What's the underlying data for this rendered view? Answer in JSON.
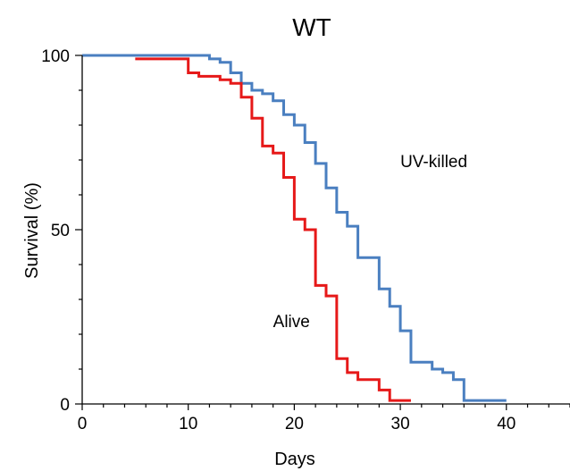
{
  "chart_data": {
    "type": "line",
    "title": "WT",
    "xlabel": "Days",
    "ylabel": "Survival (%)",
    "xlim": [
      0,
      46
    ],
    "ylim": [
      0,
      100
    ],
    "x_ticks": [
      0,
      10,
      20,
      30,
      40
    ],
    "y_ticks": [
      0,
      50,
      100
    ],
    "x_tick_labels": [
      "0",
      "10",
      "20",
      "30",
      "40"
    ],
    "y_tick_labels": [
      "0",
      "50",
      "100"
    ],
    "grid": false,
    "step": true,
    "series": [
      {
        "name": "UV-killed",
        "color": "#4a7fc0",
        "x": [
          0,
          11,
          12,
          13,
          14,
          15,
          16,
          17,
          18,
          19,
          20,
          21,
          22,
          23,
          24,
          25,
          26,
          27,
          28,
          29,
          30,
          31,
          32,
          33,
          34,
          35,
          36,
          40
        ],
        "y": [
          100,
          100,
          99,
          98,
          95,
          92,
          90,
          89,
          87,
          83,
          80,
          75,
          69,
          62,
          55,
          51,
          42,
          42,
          33,
          28,
          21,
          12,
          12,
          10,
          9,
          7,
          1,
          1
        ]
      },
      {
        "name": "Alive",
        "color": "#e61919",
        "x": [
          5,
          9,
          10,
          11,
          12,
          13,
          14,
          15,
          16,
          17,
          18,
          19,
          20,
          21,
          22,
          23,
          24,
          25,
          26,
          27,
          28,
          29,
          30,
          31
        ],
        "y": [
          99,
          99,
          95,
          94,
          94,
          93,
          92,
          88,
          82,
          74,
          72,
          65,
          53,
          50,
          34,
          31,
          13,
          9,
          7,
          7,
          4,
          1,
          1,
          1
        ]
      }
    ],
    "annotations": [
      {
        "text": "UV-killed",
        "x": 30,
        "y": 68,
        "series": "UV-killed"
      },
      {
        "text": "Alive",
        "x": 18,
        "y": 22,
        "series": "Alive"
      }
    ]
  }
}
